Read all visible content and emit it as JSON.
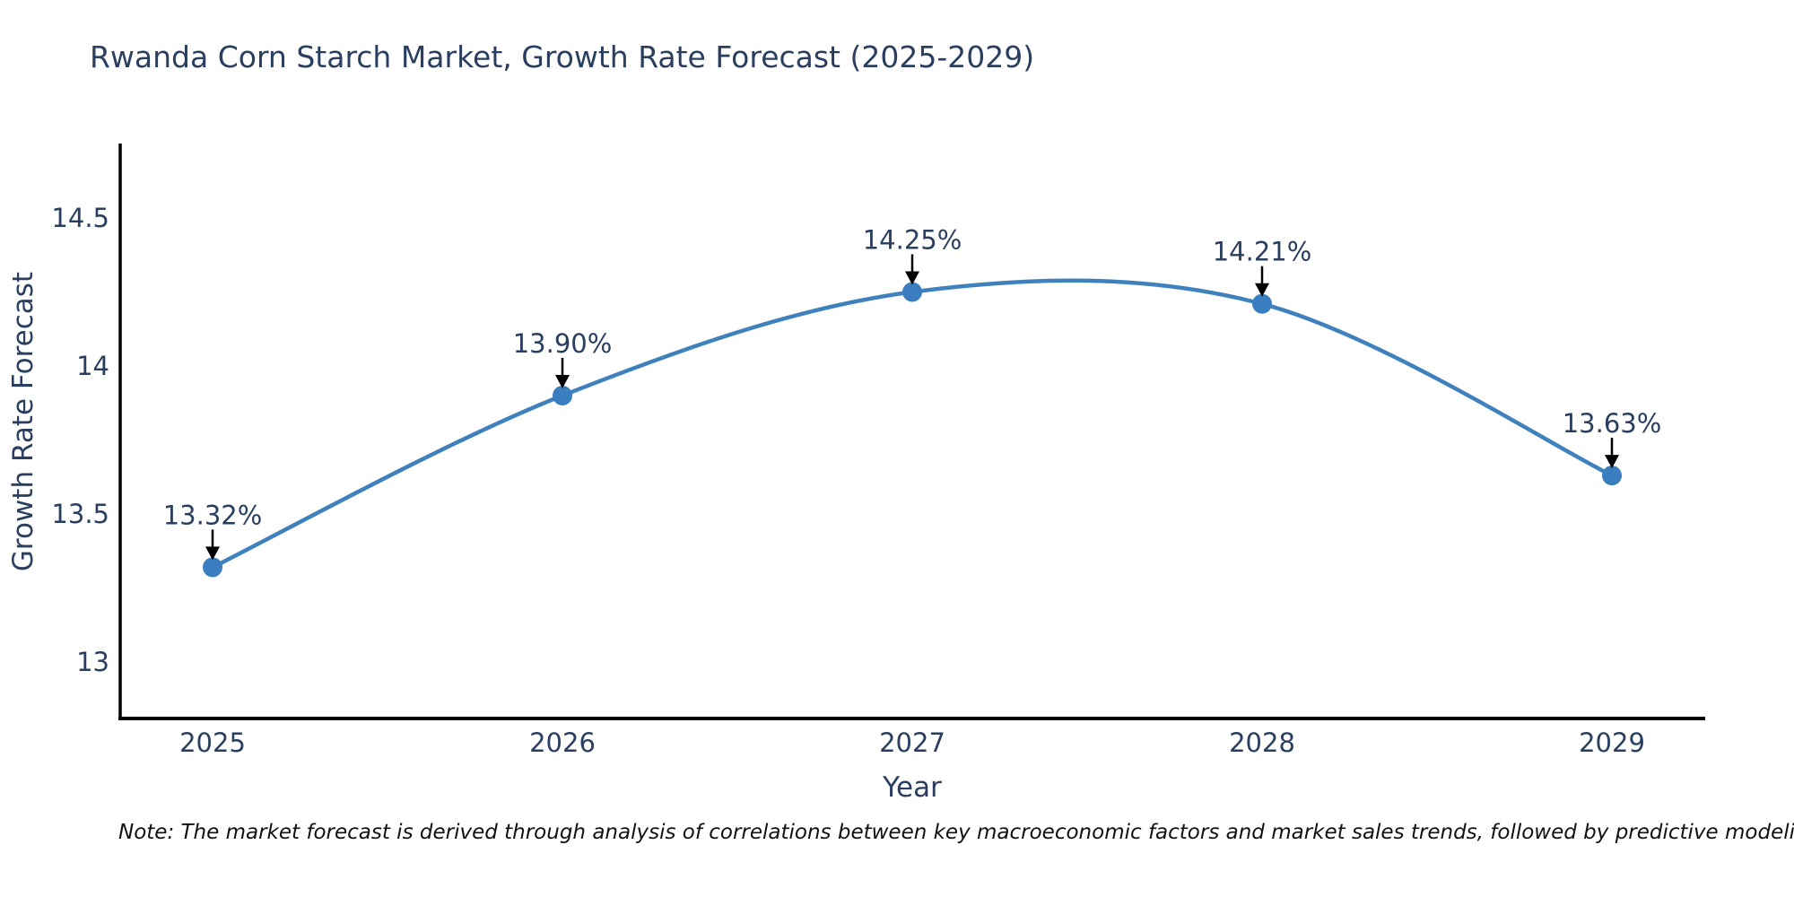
{
  "chart_data": {
    "type": "line",
    "title": "Rwanda Corn Starch Market, Growth Rate Forecast (2025-2029)",
    "xlabel": "Year",
    "ylabel": "Growth Rate Forecast",
    "categories": [
      "2025",
      "2026",
      "2027",
      "2028",
      "2029"
    ],
    "series": [
      {
        "name": "Growth Rate Forecast",
        "x": [
          2025,
          2026,
          2027,
          2028,
          2029
        ],
        "values": [
          13.32,
          13.9,
          14.25,
          14.21,
          13.63
        ],
        "point_labels": [
          "13.32%",
          "13.90%",
          "14.25%",
          "14.21%",
          "13.63%"
        ]
      }
    ],
    "yticks": [
      13,
      13.5,
      14,
      14.5
    ],
    "ytick_labels": [
      "13",
      "13.5",
      "14",
      "14.5"
    ],
    "xlim": [
      2024.74,
      2029.27
    ],
    "ylim": [
      12.81,
      14.75
    ],
    "grid": false,
    "legend": "none",
    "line_shape": "spline",
    "annotations_have_arrows": true,
    "colors": {
      "line": "#3f81bd",
      "marker": "#3a7ebf",
      "axis_text": "#2a3f5f",
      "annotation_text": "#2a3f5f",
      "arrow": "#000000",
      "spine": "#000000",
      "background": "#ffffff"
    }
  },
  "note": "Note: The market forecast is derived through analysis of correlations between key macroeconomic factors and market sales trends, followed by predictive modeling to project future sal"
}
